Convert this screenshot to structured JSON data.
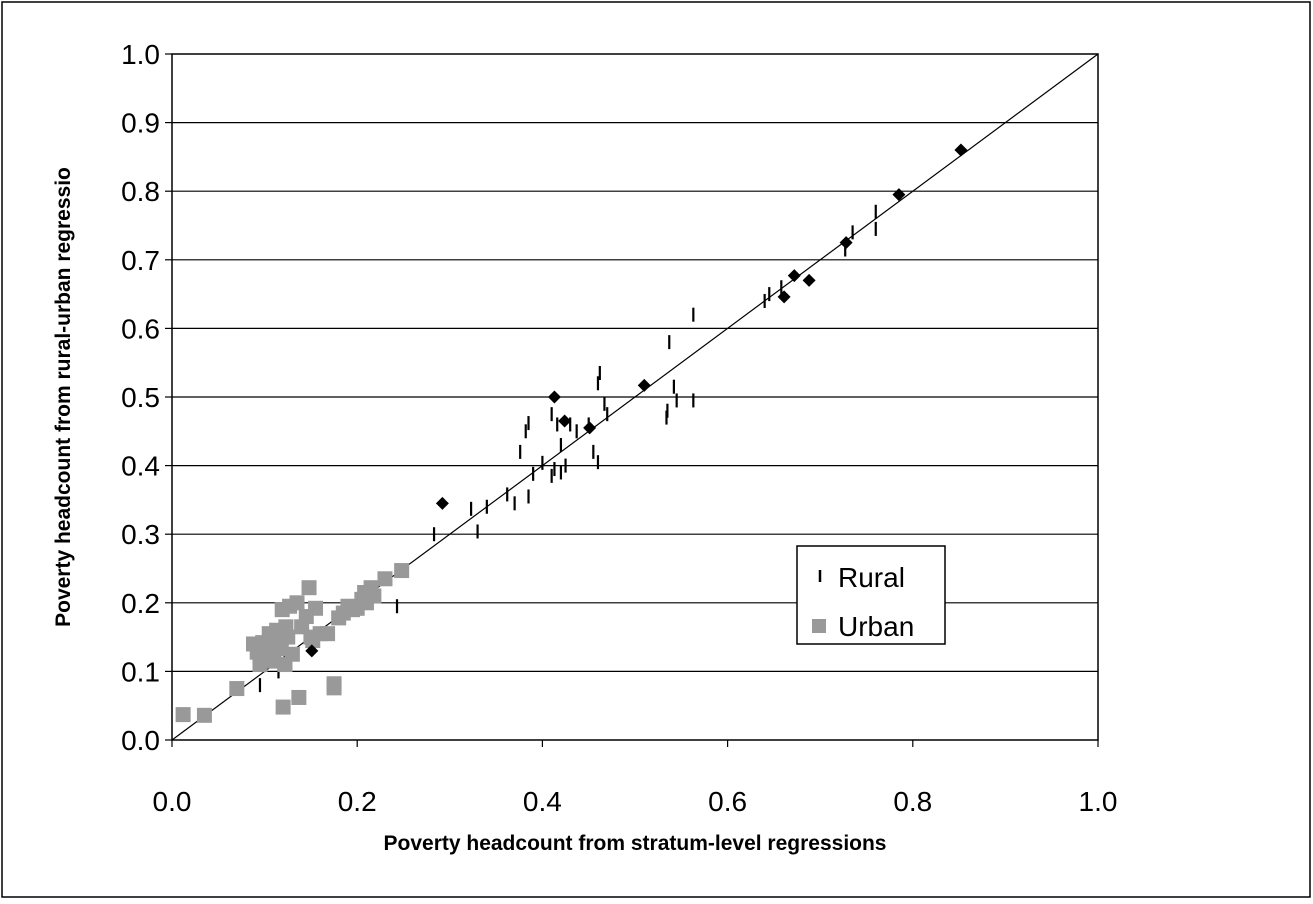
{
  "chart_data": {
    "type": "scatter",
    "xlabel": "Poverty headcount from stratum-level regressions",
    "ylabel": "Poverty headcount from rural-urban regressio",
    "xlim": [
      0.0,
      1.0
    ],
    "ylim": [
      0.0,
      1.0
    ],
    "x_ticks": [
      "0.0",
      "0.2",
      "0.4",
      "0.6",
      "0.8",
      "1.0"
    ],
    "y_ticks": [
      "0.0",
      "0.1",
      "0.2",
      "0.3",
      "0.4",
      "0.5",
      "0.6",
      "0.7",
      "0.8",
      "0.9",
      "1.0"
    ],
    "grid": "horizontal",
    "legend_position": "right",
    "reference_line": {
      "from": [
        0,
        0
      ],
      "to": [
        1,
        1
      ]
    },
    "colors": {
      "rural": "#000000",
      "urban": "#999999",
      "diamond": "#000000",
      "grid": "#000000"
    },
    "series": [
      {
        "name": "Rural",
        "marker": "dash",
        "points": [
          [
            0.283,
            0.3
          ],
          [
            0.323,
            0.337
          ],
          [
            0.33,
            0.304
          ],
          [
            0.34,
            0.34
          ],
          [
            0.362,
            0.358
          ],
          [
            0.37,
            0.345
          ],
          [
            0.376,
            0.42
          ],
          [
            0.382,
            0.45
          ],
          [
            0.385,
            0.462
          ],
          [
            0.385,
            0.355
          ],
          [
            0.39,
            0.388
          ],
          [
            0.4,
            0.404
          ],
          [
            0.41,
            0.385
          ],
          [
            0.41,
            0.475
          ],
          [
            0.413,
            0.395
          ],
          [
            0.416,
            0.46
          ],
          [
            0.42,
            0.39
          ],
          [
            0.42,
            0.43
          ],
          [
            0.425,
            0.4
          ],
          [
            0.43,
            0.46
          ],
          [
            0.437,
            0.45
          ],
          [
            0.45,
            0.46
          ],
          [
            0.455,
            0.42
          ],
          [
            0.46,
            0.405
          ],
          [
            0.46,
            0.52
          ],
          [
            0.462,
            0.535
          ],
          [
            0.467,
            0.49
          ],
          [
            0.47,
            0.475
          ],
          [
            0.534,
            0.47
          ],
          [
            0.535,
            0.48
          ],
          [
            0.537,
            0.58
          ],
          [
            0.542,
            0.515
          ],
          [
            0.545,
            0.495
          ],
          [
            0.563,
            0.495
          ],
          [
            0.563,
            0.62
          ],
          [
            0.64,
            0.64
          ],
          [
            0.645,
            0.65
          ],
          [
            0.658,
            0.66
          ],
          [
            0.727,
            0.715
          ],
          [
            0.735,
            0.74
          ],
          [
            0.76,
            0.745
          ],
          [
            0.76,
            0.77
          ],
          [
            0.243,
            0.195
          ],
          [
            0.095,
            0.08
          ],
          [
            0.115,
            0.1
          ],
          [
            0.128,
            0.115
          ]
        ]
      },
      {
        "name": "Urban",
        "marker": "square",
        "points": [
          [
            0.012,
            0.037
          ],
          [
            0.035,
            0.036
          ],
          [
            0.07,
            0.075
          ],
          [
            0.088,
            0.14
          ],
          [
            0.092,
            0.128
          ],
          [
            0.095,
            0.11
          ],
          [
            0.098,
            0.142
          ],
          [
            0.1,
            0.12
          ],
          [
            0.103,
            0.13
          ],
          [
            0.105,
            0.155
          ],
          [
            0.106,
            0.145
          ],
          [
            0.108,
            0.138
          ],
          [
            0.11,
            0.115
          ],
          [
            0.112,
            0.15
          ],
          [
            0.113,
            0.16
          ],
          [
            0.115,
            0.14
          ],
          [
            0.118,
            0.133
          ],
          [
            0.119,
            0.19
          ],
          [
            0.12,
            0.048
          ],
          [
            0.122,
            0.11
          ],
          [
            0.123,
            0.165
          ],
          [
            0.125,
            0.15
          ],
          [
            0.127,
            0.195
          ],
          [
            0.13,
            0.125
          ],
          [
            0.135,
            0.2
          ],
          [
            0.137,
            0.062
          ],
          [
            0.14,
            0.165
          ],
          [
            0.145,
            0.18
          ],
          [
            0.148,
            0.222
          ],
          [
            0.15,
            0.15
          ],
          [
            0.152,
            0.145
          ],
          [
            0.155,
            0.192
          ],
          [
            0.16,
            0.155
          ],
          [
            0.168,
            0.155
          ],
          [
            0.175,
            0.082
          ],
          [
            0.175,
            0.076
          ],
          [
            0.18,
            0.178
          ],
          [
            0.185,
            0.185
          ],
          [
            0.19,
            0.195
          ],
          [
            0.195,
            0.19
          ],
          [
            0.2,
            0.192
          ],
          [
            0.205,
            0.205
          ],
          [
            0.208,
            0.215
          ],
          [
            0.21,
            0.2
          ],
          [
            0.215,
            0.222
          ],
          [
            0.218,
            0.21
          ],
          [
            0.23,
            0.235
          ],
          [
            0.248,
            0.247
          ]
        ]
      },
      {
        "marker": "diamond",
        "points": [
          [
            0.151,
            0.13
          ],
          [
            0.292,
            0.345
          ],
          [
            0.413,
            0.5
          ],
          [
            0.424,
            0.465
          ],
          [
            0.451,
            0.455
          ],
          [
            0.51,
            0.517
          ],
          [
            0.661,
            0.646
          ],
          [
            0.672,
            0.677
          ],
          [
            0.688,
            0.67
          ],
          [
            0.728,
            0.725
          ],
          [
            0.785,
            0.795
          ],
          [
            0.852,
            0.86
          ]
        ]
      }
    ]
  }
}
